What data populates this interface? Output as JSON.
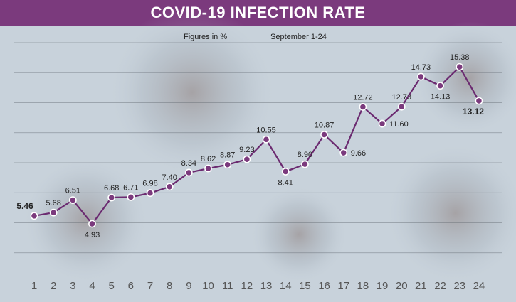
{
  "chart_data": {
    "type": "line",
    "title": "COVID-19 INFECTION RATE",
    "subtitle_left": "Figures in %",
    "subtitle_right": "September 1-24",
    "x": [
      "1",
      "2",
      "3",
      "4",
      "5",
      "6",
      "7",
      "8",
      "9",
      "10",
      "11",
      "12",
      "13",
      "14",
      "15",
      "16",
      "17",
      "18",
      "19",
      "20",
      "21",
      "22",
      "23",
      "24"
    ],
    "values": [
      5.46,
      5.68,
      6.51,
      4.93,
      6.68,
      6.71,
      6.98,
      7.4,
      8.34,
      8.62,
      8.87,
      9.23,
      10.55,
      8.41,
      8.9,
      10.87,
      9.66,
      12.72,
      11.6,
      12.73,
      14.73,
      14.13,
      15.38,
      13.12
    ],
    "labels": [
      "5.46",
      "5.68",
      "6.51",
      "4.93",
      "6.68",
      "6.71",
      "6.98",
      "7.40",
      "8.34",
      "8.62",
      "8.87",
      "9.23",
      "10.55",
      "8.41",
      "8.90",
      "10.87",
      "9.66",
      "12.72",
      "11.60",
      "12.73",
      "14.73",
      "14.13",
      "15.38",
      "13.12"
    ],
    "label_positions": [
      "above",
      "above",
      "above",
      "below",
      "above",
      "above",
      "above",
      "above",
      "above",
      "above",
      "above",
      "above",
      "above",
      "below",
      "above",
      "above",
      "right",
      "above",
      "right",
      "above",
      "above",
      "below",
      "above",
      "below"
    ],
    "bold_labels": [
      "5.46",
      "13.12"
    ],
    "ylim": [
      1,
      17
    ],
    "grid": true,
    "line_color": "#6b2a70",
    "marker_color": "#7b3a7d"
  }
}
